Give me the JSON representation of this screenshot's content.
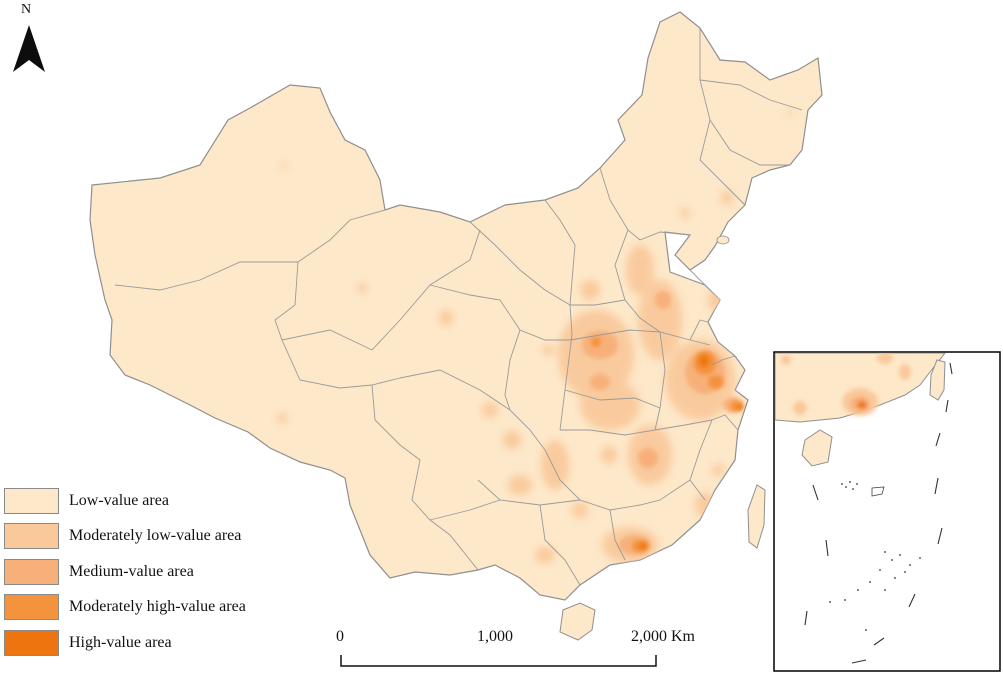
{
  "north_arrow": {
    "label": "N",
    "icon": "north-arrow-icon"
  },
  "legend": {
    "items": [
      {
        "label": "Low-value area",
        "color": "#fde8c9"
      },
      {
        "label": "Moderately low-value area",
        "color": "#f9c99b"
      },
      {
        "label": "Medium-value area",
        "color": "#f7b07a"
      },
      {
        "label": "Moderately high-value area",
        "color": "#f4923e"
      },
      {
        "label": "High-value area",
        "color": "#ee7410"
      }
    ]
  },
  "scale_bar": {
    "labels": [
      "0",
      "1,000",
      "2,000 Km"
    ]
  },
  "colors": {
    "base": "#fde8c9",
    "boundary": "#9a9a9a",
    "frame": "#000000"
  }
}
